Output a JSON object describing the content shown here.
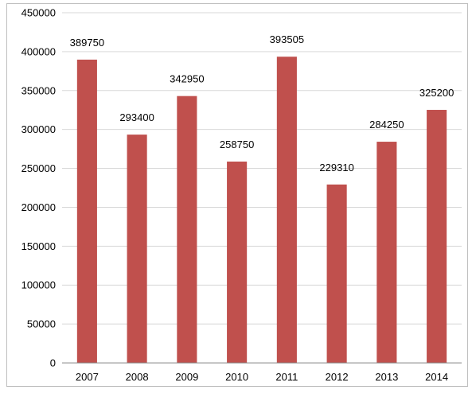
{
  "chart_data": {
    "type": "bar",
    "categories": [
      "2007",
      "2008",
      "2009",
      "2010",
      "2011",
      "2012",
      "2013",
      "2014"
    ],
    "values": [
      389750,
      293400,
      342950,
      258750,
      393505,
      229310,
      284250,
      325200
    ],
    "data_labels": [
      "389750",
      "293400",
      "342950",
      "258750",
      "393505",
      "229310",
      "284250",
      "325200"
    ],
    "title": "",
    "xlabel": "",
    "ylabel": "",
    "ylim": [
      0,
      450000
    ],
    "yticks": [
      "0",
      "50000",
      "100000",
      "150000",
      "200000",
      "250000",
      "300000",
      "350000",
      "400000",
      "450000"
    ],
    "grid": true,
    "legend": "none",
    "bar_color": "#c0504d"
  }
}
